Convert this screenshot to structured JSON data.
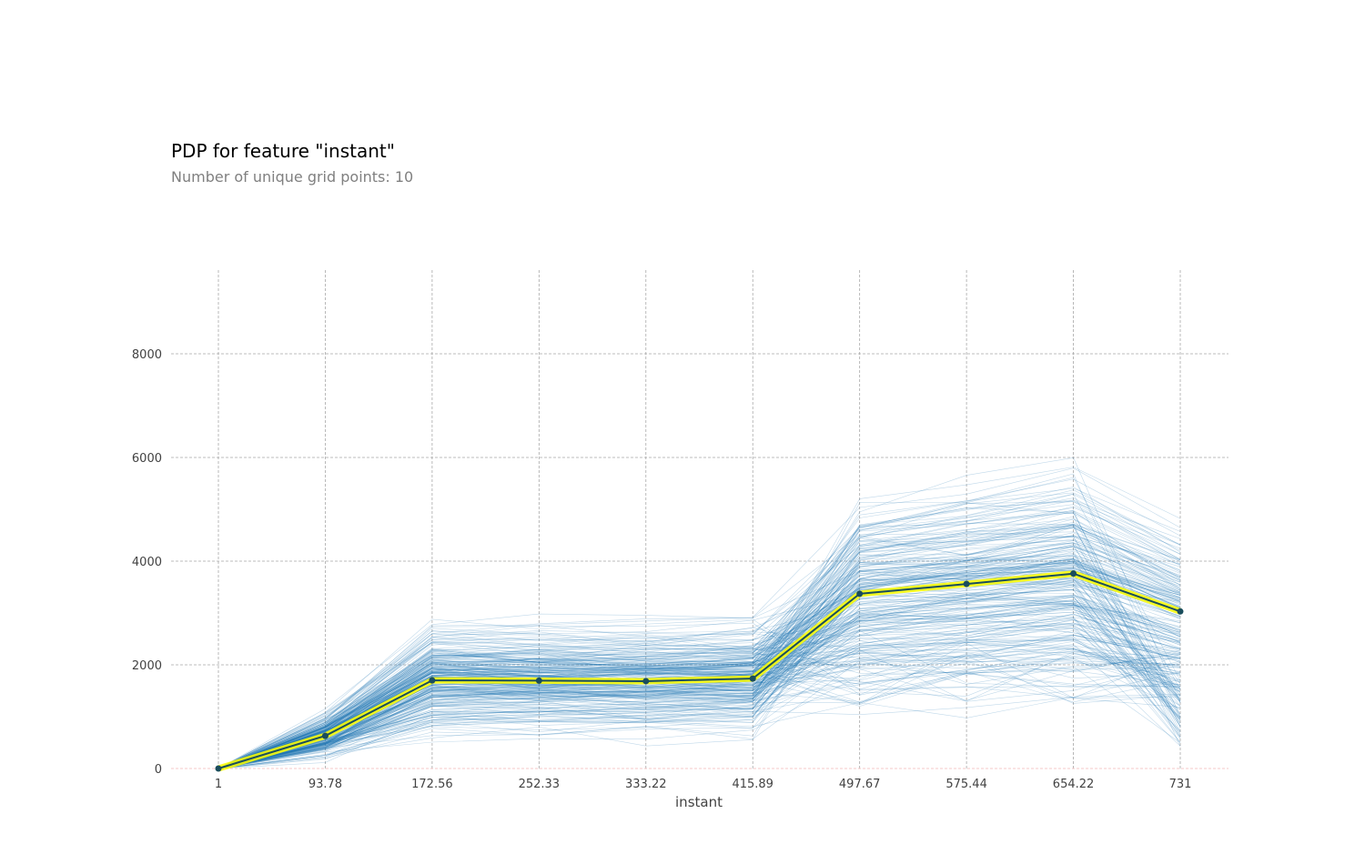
{
  "chart_data": {
    "type": "line",
    "title": "PDP for feature \"instant\"",
    "subtitle": "Number of unique grid points: 10",
    "xlabel": "instant",
    "ylabel": "",
    "x_categories": [
      "1",
      "93.78",
      "172.56",
      "252.33",
      "333.22",
      "415.89",
      "497.67",
      "575.44",
      "654.22",
      "731"
    ],
    "y_ticks": [
      0,
      2000,
      4000,
      6000,
      8000
    ],
    "ylim": [
      0,
      9600
    ],
    "grid": true,
    "ice_line_color": "#1f77b4",
    "series": [
      {
        "values": [
          0,
          630,
          1700,
          1695,
          1685,
          1735,
          3370,
          3560,
          3760,
          3030
        ],
        "line_color": "#1a4d5c",
        "highlight_color": "#ffff00"
      }
    ]
  }
}
